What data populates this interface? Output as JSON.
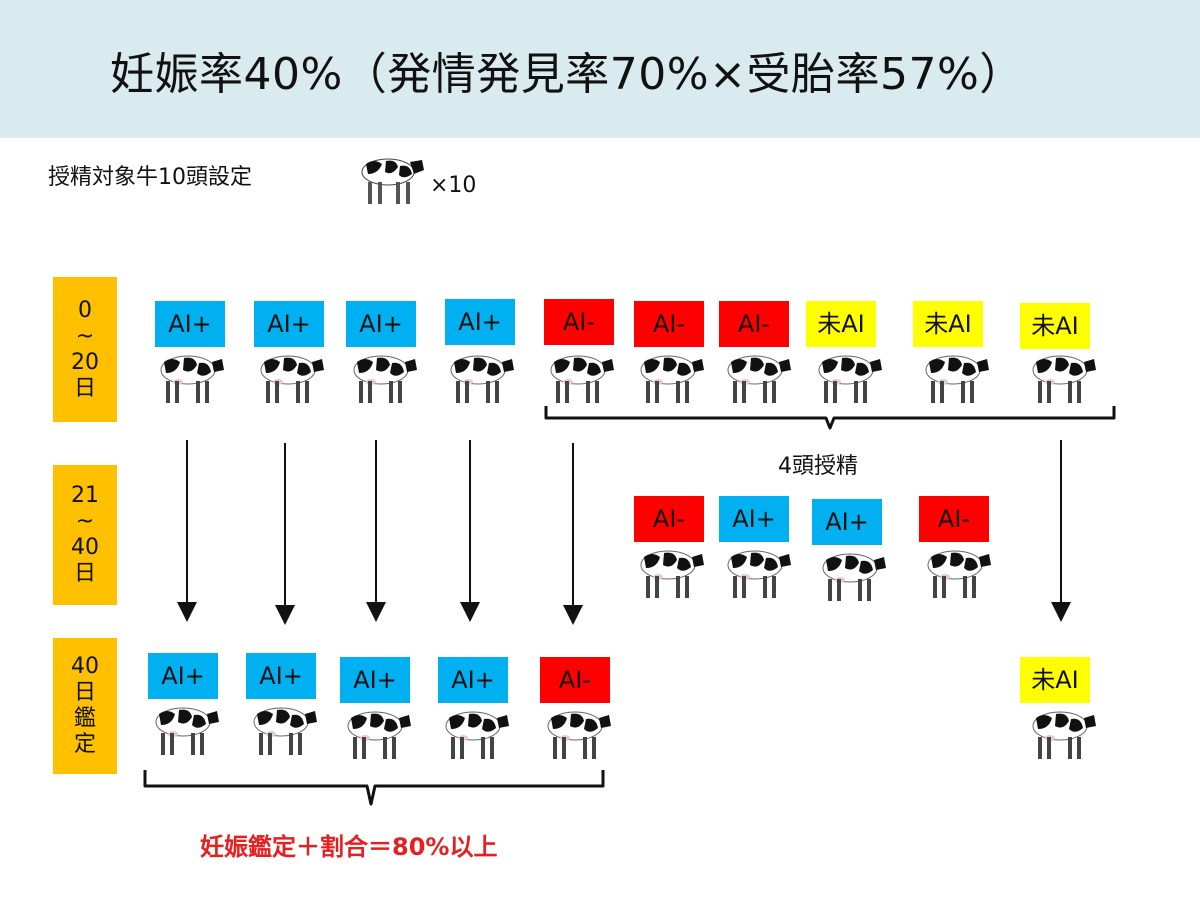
{
  "title": "妊娠率40%（発情発見率70%×受胎率57%）",
  "subtitle": "授精対象牛10頭設定",
  "multiplier": "×10",
  "row_labels": [
    [
      "0",
      "~",
      "20",
      "日"
    ],
    [
      "21",
      "~",
      "40",
      "日"
    ],
    [
      "40",
      "日",
      "鑑",
      "定"
    ]
  ],
  "box_labels": {
    "ai_plus": "AI+",
    "ai_minus": "AI-",
    "no_ai": "未AI"
  },
  "row1": [
    "AI+",
    "AI+",
    "AI+",
    "AI+",
    "AI-",
    "AI-",
    "AI-",
    "未AI",
    "未AI",
    "未AI"
  ],
  "row2": [
    "AI-",
    "AI+",
    "AI+",
    "AI-"
  ],
  "row3": [
    "AI+",
    "AI+",
    "AI+",
    "AI+",
    "AI-",
    "未AI"
  ],
  "brace_label": "4頭授精",
  "result_text": "妊娠鑑定＋割合＝80%以上",
  "colors": {
    "header_bg": "#daebef",
    "label_bg": "#ffc000",
    "ai_plus": "#00b0f0",
    "ai_minus": "#ff0000",
    "no_ai": "#ffff00",
    "result_text": "#e62020"
  }
}
